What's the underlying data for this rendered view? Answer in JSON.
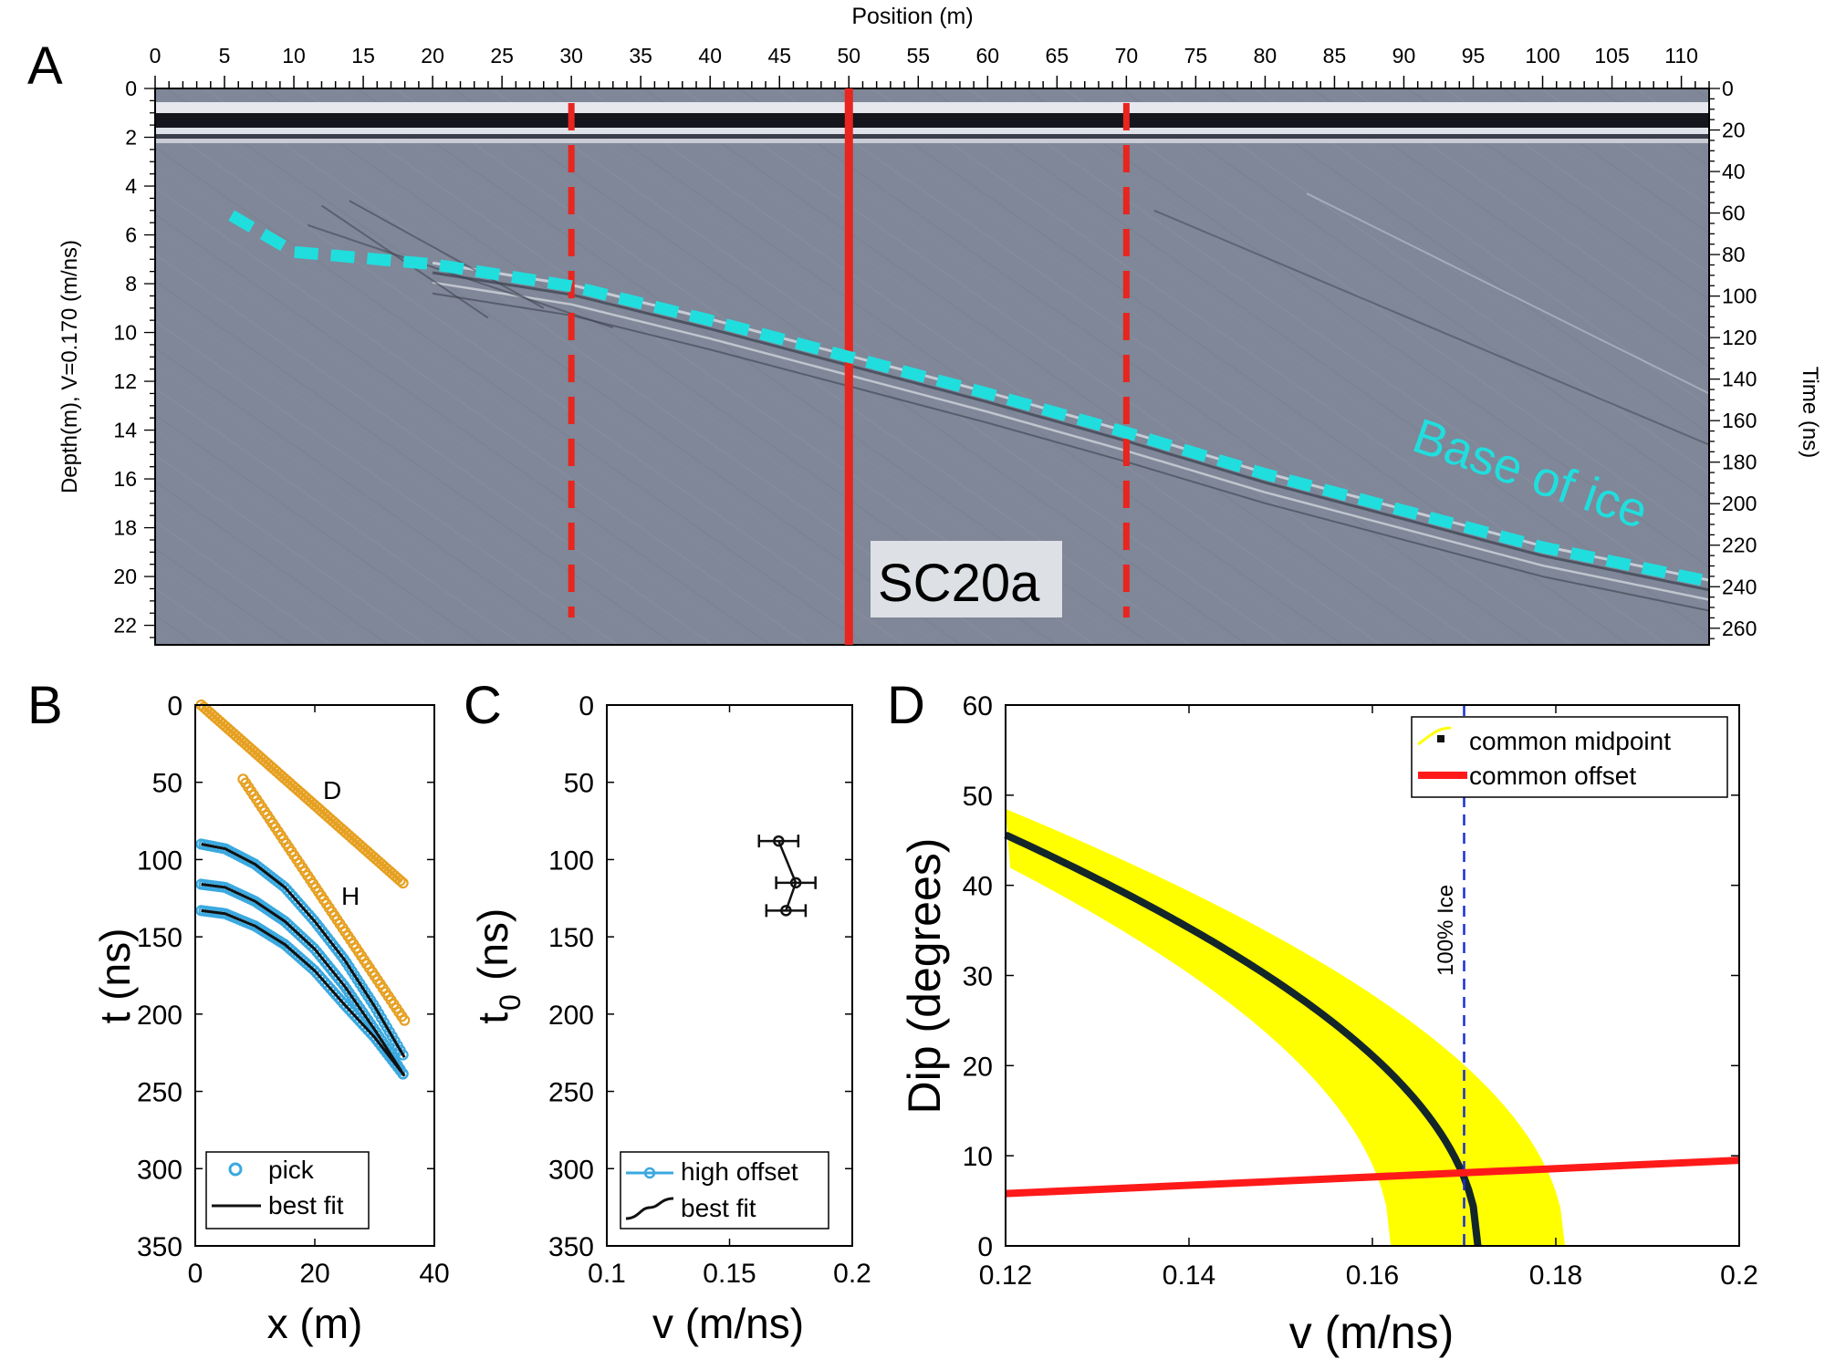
{
  "panel_letters": [
    "A",
    "B",
    "C",
    "D"
  ],
  "chart_data": [
    {
      "type": "radargram",
      "panel": "A",
      "top_axis_label": "Position (m)",
      "left_axis_label": "Depth(m), V=0.170 (m/ns)",
      "right_axis_label": "Time (ns)",
      "x_ticks": [
        0,
        5,
        10,
        15,
        20,
        25,
        30,
        35,
        40,
        45,
        50,
        55,
        60,
        65,
        70,
        75,
        80,
        85,
        90,
        95,
        100,
        105,
        110
      ],
      "x_range": [
        0,
        112
      ],
      "depth_ticks": [
        0,
        2,
        4,
        6,
        8,
        10,
        12,
        14,
        16,
        18,
        20,
        22
      ],
      "depth_range": [
        0,
        22.8
      ],
      "time_ticks": [
        0,
        20,
        40,
        60,
        80,
        100,
        120,
        140,
        160,
        180,
        200,
        220,
        240,
        260
      ],
      "time_range": [
        0,
        268
      ],
      "base_of_ice": {
        "label": "Base of ice",
        "color": "#20dede",
        "points": [
          [
            5.5,
            5.2
          ],
          [
            10,
            6.7
          ],
          [
            20,
            7.2
          ],
          [
            30,
            8.1
          ],
          [
            40,
            9.5
          ],
          [
            50,
            11.0
          ],
          [
            60,
            12.5
          ],
          [
            70,
            14.1
          ],
          [
            80,
            15.8
          ],
          [
            90,
            17.3
          ],
          [
            100,
            18.8
          ],
          [
            112,
            20.2
          ]
        ]
      },
      "markers": [
        {
          "x": 30,
          "style": "dashed",
          "color": "#e8251e"
        },
        {
          "x": 50,
          "style": "solid",
          "color": "#e8251e",
          "label": "SC20a"
        },
        {
          "x": 70,
          "style": "dashed",
          "color": "#e8251e"
        }
      ]
    },
    {
      "type": "scatter",
      "panel": "B",
      "xlabel": "x (m)",
      "ylabel": "t (ns)",
      "xlim": [
        0,
        40
      ],
      "ylim": [
        0,
        350
      ],
      "y_reversed": true,
      "x_ticks": [
        0,
        20,
        40
      ],
      "y_ticks": [
        0,
        50,
        100,
        150,
        200,
        250,
        300,
        350
      ],
      "legend": [
        "pick",
        "best fit"
      ],
      "legend_position": "bottom-left",
      "series": [
        {
          "name": "pick",
          "color": "#3aa9e0",
          "x": [
            1,
            5,
            10,
            15,
            20,
            25,
            30,
            35
          ],
          "y": [
            90,
            93,
            103,
            118,
            140,
            165,
            195,
            228
          ]
        },
        {
          "x": [
            1,
            5,
            10,
            15,
            20,
            25,
            30,
            35
          ],
          "y": [
            116,
            118,
            127,
            140,
            158,
            182,
            210,
            240
          ],
          "color": "#3aa9e0"
        },
        {
          "x": [
            1,
            5,
            10,
            15,
            20,
            25,
            30,
            35
          ],
          "y": [
            133,
            135,
            143,
            155,
            172,
            194,
            215,
            240
          ],
          "color": "#3aa9e0"
        },
        {
          "name": "best fit",
          "color": "#111111",
          "x": [
            1,
            5,
            10,
            15,
            20,
            25,
            30,
            35
          ],
          "y": [
            90,
            93,
            103,
            118,
            140,
            165,
            195,
            228
          ]
        },
        {
          "x": [
            1,
            5,
            10,
            15,
            20,
            25,
            30,
            35
          ],
          "y": [
            116,
            118,
            127,
            140,
            158,
            182,
            210,
            240
          ],
          "color": "#111111"
        },
        {
          "x": [
            1,
            5,
            10,
            15,
            20,
            25,
            30,
            35
          ],
          "y": [
            133,
            135,
            143,
            155,
            172,
            194,
            215,
            240
          ],
          "color": "#111111"
        },
        {
          "label": "D",
          "color": "#e6a021",
          "x": [
            1,
            35
          ],
          "y": [
            0,
            116
          ]
        },
        {
          "label": "H",
          "color": "#e6a021",
          "x": [
            8,
            35
          ],
          "y": [
            48,
            204
          ]
        }
      ]
    },
    {
      "type": "scatter",
      "panel": "C",
      "xlabel": "v (m/ns)",
      "ylabel_main": "t",
      "ylabel_sub": "0",
      "ylabel_unit": "(ns)",
      "xlim": [
        0.1,
        0.2
      ],
      "ylim": [
        0,
        350
      ],
      "y_reversed": true,
      "x_ticks": [
        0.1,
        0.15,
        0.2
      ],
      "y_ticks": [
        0,
        50,
        100,
        150,
        200,
        250,
        300,
        350
      ],
      "legend": [
        "high offset",
        "best fit"
      ],
      "legend_position": "bottom",
      "points": [
        {
          "v": 0.17,
          "t0": 88,
          "err": 0.008
        },
        {
          "v": 0.177,
          "t0": 115,
          "err": 0.008
        },
        {
          "v": 0.173,
          "t0": 133,
          "err": 0.008
        }
      ]
    },
    {
      "type": "line",
      "panel": "D",
      "xlabel": "v (m/ns)",
      "ylabel": "Dip (degrees)",
      "xlim": [
        0.12,
        0.2
      ],
      "ylim": [
        0,
        60
      ],
      "x_ticks": [
        0.12,
        0.14,
        0.16,
        0.18,
        0.2
      ],
      "y_ticks": [
        0,
        10,
        20,
        30,
        40,
        50,
        60
      ],
      "legend": [
        "common midpoint",
        "common offset"
      ],
      "legend_position": "top-right",
      "reference_line": {
        "v": 0.17,
        "label": "100% Ice",
        "color": "#1a2fd6"
      },
      "common_midpoint": {
        "color": "#13262a",
        "band_color": "#ffff00",
        "center_v0": 0.1715,
        "band_halfwidth_v": 0.0095,
        "band_top_left_dip": 51,
        "band_bottom_left_dip": 41
      },
      "common_offset": {
        "color": "#ff1a1a",
        "v": [
          0.12,
          0.2
        ],
        "dip": [
          5.8,
          9.5
        ]
      }
    }
  ]
}
